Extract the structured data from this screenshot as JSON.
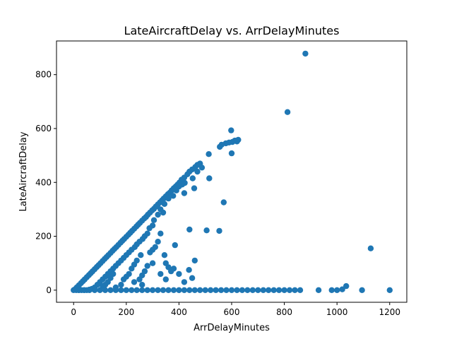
{
  "chart_data": {
    "type": "scatter",
    "title": "LateAircraftDelay vs. ArrDelayMinutes",
    "xlabel": "ArrDelayMinutes",
    "ylabel": "LateAircraftDelay",
    "xlim": [
      -65,
      1265
    ],
    "ylim": [
      -45,
      925
    ],
    "xticks": [
      0,
      200,
      400,
      600,
      800,
      1000,
      1200
    ],
    "yticks": [
      0,
      200,
      400,
      600,
      800
    ],
    "grid": false,
    "legend": "none",
    "marker_color": "#1f77b4",
    "series": [
      {
        "points": [
          [
            880,
            878
          ],
          [
            812,
            661
          ],
          [
            598,
            593
          ],
          [
            625,
            558
          ],
          [
            620,
            552
          ],
          [
            612,
            555
          ],
          [
            603,
            550
          ],
          [
            590,
            548
          ],
          [
            578,
            545
          ],
          [
            562,
            540
          ],
          [
            555,
            532
          ],
          [
            600,
            508
          ],
          [
            513,
            505
          ],
          [
            480,
            470
          ],
          [
            470,
            465
          ],
          [
            462,
            457
          ],
          [
            450,
            448
          ],
          [
            440,
            440
          ],
          [
            432,
            430
          ],
          [
            420,
            418
          ],
          [
            410,
            410
          ],
          [
            402,
            400
          ],
          [
            395,
            392
          ],
          [
            388,
            385
          ],
          [
            380,
            378
          ],
          [
            372,
            370
          ],
          [
            365,
            362
          ],
          [
            358,
            356
          ],
          [
            350,
            348
          ],
          [
            342,
            340
          ],
          [
            335,
            333
          ],
          [
            328,
            326
          ],
          [
            320,
            318
          ],
          [
            312,
            310
          ],
          [
            305,
            302
          ],
          [
            298,
            296
          ],
          [
            290,
            288
          ],
          [
            282,
            280
          ],
          [
            275,
            272
          ],
          [
            268,
            266
          ],
          [
            260,
            258
          ],
          [
            252,
            250
          ],
          [
            245,
            243
          ],
          [
            238,
            236
          ],
          [
            230,
            228
          ],
          [
            222,
            220
          ],
          [
            215,
            213
          ],
          [
            208,
            206
          ],
          [
            200,
            198
          ],
          [
            192,
            190
          ],
          [
            185,
            183
          ],
          [
            178,
            176
          ],
          [
            170,
            168
          ],
          [
            162,
            160
          ],
          [
            155,
            153
          ],
          [
            148,
            146
          ],
          [
            140,
            138
          ],
          [
            132,
            130
          ],
          [
            125,
            123
          ],
          [
            118,
            116
          ],
          [
            110,
            108
          ],
          [
            102,
            100
          ],
          [
            95,
            93
          ],
          [
            88,
            86
          ],
          [
            80,
            78
          ],
          [
            72,
            70
          ],
          [
            65,
            63
          ],
          [
            58,
            56
          ],
          [
            50,
            48
          ],
          [
            42,
            40
          ],
          [
            35,
            33
          ],
          [
            28,
            26
          ],
          [
            20,
            18
          ],
          [
            12,
            10
          ],
          [
            5,
            3
          ],
          [
            487,
            455
          ],
          [
            470,
            440
          ],
          [
            458,
            378
          ],
          [
            452,
            415
          ],
          [
            422,
            398
          ],
          [
            420,
            360
          ],
          [
            412,
            392
          ],
          [
            400,
            385
          ],
          [
            390,
            370
          ],
          [
            378,
            350
          ],
          [
            360,
            340
          ],
          [
            345,
            320
          ],
          [
            340,
            288
          ],
          [
            330,
            300
          ],
          [
            320,
            280
          ],
          [
            305,
            260
          ],
          [
            300,
            240
          ],
          [
            288,
            230
          ],
          [
            280,
            210
          ],
          [
            270,
            200
          ],
          [
            262,
            190
          ],
          [
            250,
            180
          ],
          [
            240,
            170
          ],
          [
            232,
            160
          ],
          [
            220,
            150
          ],
          [
            210,
            140
          ],
          [
            200,
            130
          ],
          [
            190,
            120
          ],
          [
            180,
            110
          ],
          [
            170,
            100
          ],
          [
            160,
            90
          ],
          [
            150,
            80
          ],
          [
            140,
            70
          ],
          [
            130,
            60
          ],
          [
            120,
            50
          ],
          [
            110,
            40
          ],
          [
            100,
            30
          ],
          [
            90,
            20
          ],
          [
            80,
            10
          ],
          [
            70,
            5
          ],
          [
            60,
            2
          ],
          [
            50,
            0
          ],
          [
            40,
            0
          ],
          [
            30,
            0
          ],
          [
            20,
            0
          ],
          [
            10,
            0
          ],
          [
            515,
            415
          ],
          [
            570,
            326
          ],
          [
            385,
            167
          ],
          [
            440,
            225
          ],
          [
            505,
            222
          ],
          [
            553,
            220
          ],
          [
            460,
            110
          ],
          [
            438,
            75
          ],
          [
            450,
            45
          ],
          [
            330,
            210
          ],
          [
            320,
            180
          ],
          [
            310,
            160
          ],
          [
            300,
            150
          ],
          [
            290,
            140
          ],
          [
            345,
            130
          ],
          [
            350,
            100
          ],
          [
            360,
            85
          ],
          [
            370,
            70
          ],
          [
            255,
            130
          ],
          [
            240,
            110
          ],
          [
            230,
            95
          ],
          [
            220,
            80
          ],
          [
            210,
            60
          ],
          [
            200,
            50
          ],
          [
            190,
            40
          ],
          [
            280,
            90
          ],
          [
            270,
            70
          ],
          [
            260,
            55
          ],
          [
            250,
            40
          ],
          [
            150,
            60
          ],
          [
            140,
            45
          ],
          [
            130,
            30
          ],
          [
            120,
            20
          ],
          [
            110,
            15
          ],
          [
            1128,
            155
          ],
          [
            1035,
            15
          ],
          [
            1020,
            3
          ],
          [
            380,
            80
          ],
          [
            400,
            60
          ],
          [
            420,
            30
          ],
          [
            300,
            100
          ],
          [
            330,
            60
          ],
          [
            350,
            40
          ],
          [
            260,
            20
          ],
          [
            230,
            30
          ],
          [
            180,
            20
          ],
          [
            160,
            10
          ],
          [
            0,
            0
          ],
          [
            20,
            0
          ],
          [
            40,
            0
          ],
          [
            60,
            0
          ],
          [
            80,
            0
          ],
          [
            100,
            0
          ],
          [
            120,
            0
          ],
          [
            140,
            0
          ],
          [
            160,
            0
          ],
          [
            180,
            0
          ],
          [
            200,
            0
          ],
          [
            220,
            0
          ],
          [
            240,
            0
          ],
          [
            260,
            0
          ],
          [
            280,
            0
          ],
          [
            300,
            0
          ],
          [
            320,
            0
          ],
          [
            340,
            0
          ],
          [
            360,
            0
          ],
          [
            380,
            0
          ],
          [
            400,
            0
          ],
          [
            420,
            0
          ],
          [
            440,
            0
          ],
          [
            460,
            0
          ],
          [
            480,
            0
          ],
          [
            500,
            0
          ],
          [
            520,
            0
          ],
          [
            540,
            0
          ],
          [
            560,
            0
          ],
          [
            580,
            0
          ],
          [
            600,
            0
          ],
          [
            620,
            0
          ],
          [
            640,
            0
          ],
          [
            660,
            0
          ],
          [
            680,
            0
          ],
          [
            700,
            0
          ],
          [
            720,
            0
          ],
          [
            740,
            0
          ],
          [
            760,
            0
          ],
          [
            780,
            0
          ],
          [
            800,
            0
          ],
          [
            820,
            0
          ],
          [
            840,
            0
          ],
          [
            860,
            0
          ],
          [
            930,
            0
          ],
          [
            980,
            0
          ],
          [
            1000,
            0
          ],
          [
            1095,
            0
          ],
          [
            1200,
            0
          ]
        ]
      }
    ]
  }
}
